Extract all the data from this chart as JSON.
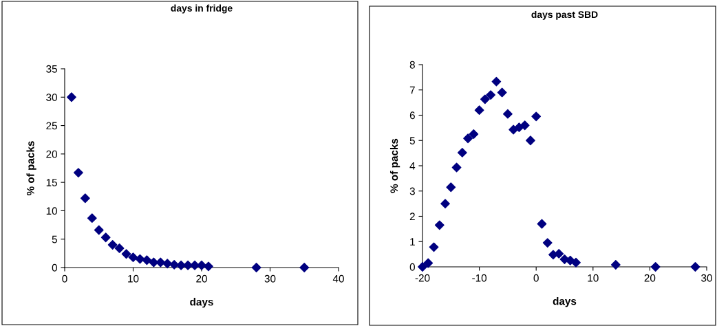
{
  "chart_data": [
    {
      "type": "scatter",
      "title": "days in fridge",
      "xlabel": "days",
      "ylabel": "% of packs",
      "marker": "diamond",
      "grid": false,
      "legend": false,
      "x": [
        1,
        2,
        3,
        4,
        5,
        6,
        7,
        8,
        9,
        10,
        11,
        12,
        13,
        14,
        15,
        16,
        17,
        18,
        19,
        20,
        21,
        28,
        35
      ],
      "series": [
        {
          "color": "#000080",
          "values": [
            30,
            16.7,
            12.2,
            8.7,
            6.6,
            5.3,
            4.0,
            3.4,
            2.4,
            1.8,
            1.5,
            1.3,
            0.9,
            0.9,
            0.7,
            0.5,
            0.4,
            0.4,
            0.4,
            0.4,
            0.2,
            0,
            0
          ]
        }
      ],
      "xlim": [
        0,
        40
      ],
      "xticks": [
        0,
        10,
        20,
        30,
        40
      ],
      "ylim": [
        0,
        35
      ],
      "yticks": [
        0,
        5,
        10,
        15,
        20,
        25,
        30,
        35
      ]
    },
    {
      "type": "scatter",
      "title": "days past SBD",
      "xlabel": "days",
      "ylabel": "% of packs",
      "marker": "diamond",
      "grid": false,
      "legend": false,
      "x": [
        -20,
        -19,
        -18,
        -17,
        -16,
        -15,
        -14,
        -13,
        -12,
        -11,
        -10,
        -9,
        -8,
        -7,
        -6,
        -5,
        -4,
        -3,
        -2,
        -1,
        0,
        1,
        2,
        3,
        4,
        5,
        6,
        7,
        14,
        21,
        28
      ],
      "series": [
        {
          "color": "#000080",
          "values": [
            0,
            0.15,
            0.78,
            1.65,
            2.5,
            3.15,
            3.93,
            4.52,
            5.08,
            5.25,
            6.2,
            6.63,
            6.8,
            7.33,
            6.9,
            6.05,
            5.43,
            5.52,
            5.6,
            5.0,
            5.95,
            1.7,
            0.95,
            0.48,
            0.52,
            0.3,
            0.25,
            0.17,
            0.08,
            0,
            0
          ]
        }
      ],
      "xlim": [
        -20,
        30
      ],
      "xticks": [
        -20,
        -10,
        0,
        10,
        20,
        30
      ],
      "ylim": [
        0,
        8
      ],
      "yticks": [
        0,
        1,
        2,
        3,
        4,
        5,
        6,
        7,
        8
      ]
    }
  ]
}
